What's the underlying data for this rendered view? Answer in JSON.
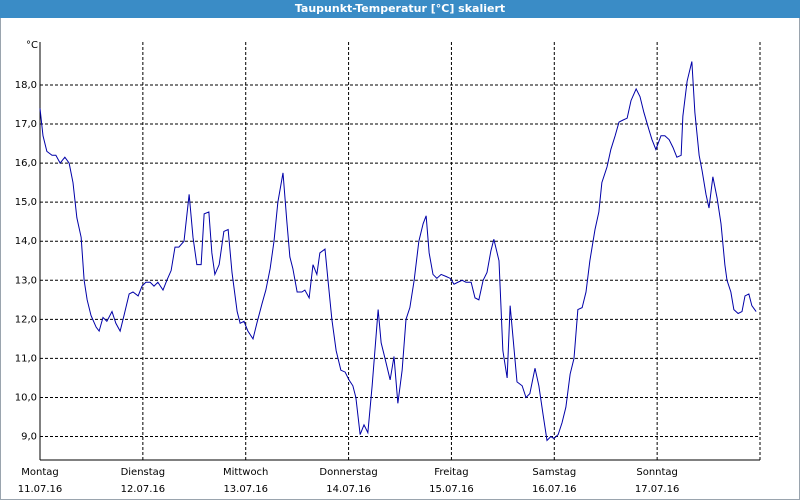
{
  "chart_data": {
    "type": "line",
    "title": "Taupunkt-Temperatur [°C] skaliert",
    "y_label": "°C",
    "xlim": [
      0,
      168
    ],
    "xticks": [
      {
        "value": 0,
        "label": "Montag",
        "date": "11.07.16"
      },
      {
        "value": 24,
        "label": "Dienstag",
        "date": "12.07.16"
      },
      {
        "value": 48,
        "label": "Mittwoch",
        "date": "13.07.16"
      },
      {
        "value": 72,
        "label": "Donnerstag",
        "date": "14.07.16"
      },
      {
        "value": 96,
        "label": "Freitag",
        "date": "15.07.16"
      },
      {
        "value": 120,
        "label": "Samstag",
        "date": "16.07.16"
      },
      {
        "value": 144,
        "label": "Sonntag",
        "date": "17.07.16"
      }
    ],
    "ylim": [
      8.4,
      19.1
    ],
    "yticks": [
      {
        "value": 9,
        "label": "9,0"
      },
      {
        "value": 10,
        "label": "10,0"
      },
      {
        "value": 11,
        "label": "11,0"
      },
      {
        "value": 12,
        "label": "12,0"
      },
      {
        "value": 13,
        "label": "13,0"
      },
      {
        "value": 14,
        "label": "14,0"
      },
      {
        "value": 15,
        "label": "15,0"
      },
      {
        "value": 16,
        "label": "16,0"
      },
      {
        "value": 17,
        "label": "17,0"
      },
      {
        "value": 18,
        "label": "18,0"
      }
    ],
    "grid": true,
    "x": [
      0,
      0.7,
      1.6,
      2.8,
      3.7,
      4.7,
      5.8,
      6.8,
      7.7,
      8.6,
      9.6,
      10.3,
      11.0,
      11.9,
      13.1,
      13.8,
      14.7,
      15.6,
      16.8,
      17.7,
      18.7,
      19.6,
      20.8,
      21.7,
      22.9,
      23.8,
      24.7,
      25.7,
      26.6,
      27.5,
      28.7,
      29.6,
      30.6,
      31.5,
      32.4,
      33.6,
      34.8,
      35.7,
      36.6,
      37.6,
      38.3,
      39.4,
      40.1,
      40.8,
      41.8,
      42.9,
      43.9,
      44.8,
      46.0,
      46.7,
      47.6,
      48.5,
      49.7,
      50.6,
      51.8,
      52.7,
      53.7,
      54.6,
      55.5,
      56.7,
      57.6,
      58.3,
      59.0,
      60.0,
      61.1,
      61.8,
      62.8,
      63.7,
      64.6,
      65.3,
      66.5,
      67.2,
      68.1,
      69.1,
      70.2,
      71.2,
      72.1,
      73.0,
      73.7,
      74.7,
      75.6,
      76.5,
      77.5,
      78.9,
      79.6,
      80.5,
      81.7,
      82.6,
      83.5,
      84.5,
      85.4,
      86.3,
      87.3,
      88.4,
      89.4,
      90.1,
      90.8,
      91.7,
      92.6,
      93.6,
      94.7,
      95.7,
      96.6,
      97.5,
      98.5,
      99.4,
      100.6,
      101.5,
      102.4,
      103.4,
      104.3,
      105.2,
      105.9,
      107.1,
      108.0,
      109.0,
      109.7,
      110.4,
      111.3,
      112.5,
      113.4,
      114.3,
      115.5,
      116.4,
      117.4,
      118.3,
      119.2,
      119.9,
      120.9,
      121.8,
      122.7,
      123.7,
      124.6,
      125.5,
      126.5,
      127.4,
      128.3,
      129.5,
      130.4,
      131.1,
      132.3,
      133.2,
      134.2,
      135.1,
      136.0,
      137.0,
      137.9,
      139.1,
      140.0,
      140.9,
      142.1,
      142.8,
      143.7,
      144.9,
      145.8,
      146.8,
      147.7,
      148.6,
      149.6,
      150.0,
      151.0,
      152.1,
      152.8,
      153.8,
      154.5,
      155.4,
      156.1,
      157.0,
      158.0,
      158.9,
      159.8,
      160.3,
      161.2,
      161.9,
      162.9,
      163.8,
      164.5,
      165.4,
      166.1,
      167.1
    ],
    "series": [
      {
        "color": "#0000a8",
        "values": [
          17.4,
          16.7,
          16.3,
          16.2,
          16.2,
          16.0,
          16.15,
          16.0,
          15.5,
          14.6,
          14.1,
          13.0,
          12.5,
          12.1,
          11.8,
          11.7,
          12.05,
          11.95,
          12.2,
          11.9,
          11.7,
          12.1,
          12.65,
          12.7,
          12.6,
          12.85,
          12.95,
          12.95,
          12.85,
          12.95,
          12.75,
          13.0,
          13.25,
          13.85,
          13.85,
          14.0,
          15.2,
          14.1,
          13.4,
          13.4,
          14.7,
          14.75,
          13.7,
          13.15,
          13.4,
          14.25,
          14.3,
          13.2,
          12.2,
          11.9,
          11.95,
          11.7,
          11.5,
          11.9,
          12.4,
          12.75,
          13.3,
          14.0,
          15.0,
          15.75,
          14.5,
          13.6,
          13.3,
          12.7,
          12.7,
          12.75,
          12.55,
          13.4,
          13.15,
          13.7,
          13.8,
          13.0,
          12.0,
          11.2,
          10.7,
          10.65,
          10.45,
          10.3,
          10.0,
          9.05,
          9.3,
          9.1,
          10.3,
          12.25,
          11.4,
          11.0,
          10.45,
          11.05,
          9.85,
          10.7,
          12.0,
          12.3,
          13.0,
          14.0,
          14.45,
          14.65,
          13.7,
          13.15,
          13.05,
          13.15,
          13.1,
          13.05,
          12.9,
          12.95,
          13.0,
          12.95,
          12.95,
          12.55,
          12.5,
          13.0,
          13.2,
          13.75,
          14.05,
          13.5,
          11.2,
          10.5,
          12.35,
          11.5,
          10.4,
          10.3,
          10.0,
          10.1,
          10.75,
          10.3,
          9.55,
          8.9,
          9.0,
          8.95,
          9.05,
          9.35,
          9.75,
          10.6,
          11.0,
          12.25,
          12.3,
          12.7,
          13.5,
          14.3,
          14.75,
          15.5,
          15.9,
          16.35,
          16.7,
          17.05,
          17.1,
          17.15,
          17.6,
          17.9,
          17.7,
          17.3,
          16.85,
          16.6,
          16.35,
          16.7,
          16.7,
          16.6,
          16.4,
          16.15,
          16.2,
          17.2,
          18.1,
          18.6,
          17.3,
          16.2,
          15.8,
          15.2,
          14.85,
          15.65,
          15.1,
          14.45,
          13.4,
          13.0,
          12.7,
          12.25,
          12.15,
          12.2,
          12.6,
          12.65,
          12.35,
          12.2
        ]
      }
    ]
  }
}
